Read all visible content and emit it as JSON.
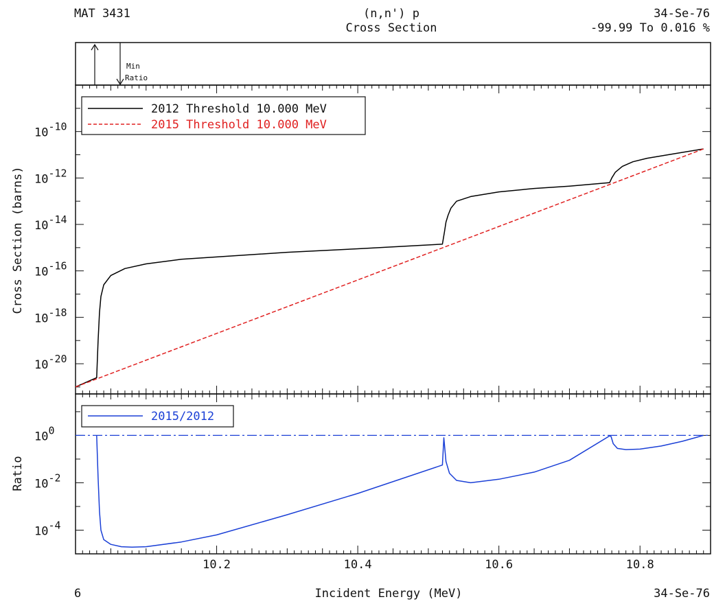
{
  "header": {
    "mat": "MAT 3431",
    "reaction": "(n,n') p",
    "quantity": "Cross Section",
    "nuclide": "34-Se-76",
    "ratio_range": "-99.99 To 0.016 %"
  },
  "footer": {
    "page": "6",
    "xlabel": "Incident Energy (MeV)",
    "nuclide": "34-Se-76"
  },
  "top_panel": {
    "min_label": "Min",
    "ratio_label": "Ratio"
  },
  "chart_data": [
    {
      "type": "line",
      "panel": "cross_section",
      "ylabel": "Cross Section (barns)",
      "xlabel": "Incident Energy (MeV)",
      "yscale": "log",
      "xlim": [
        10.0,
        10.9
      ],
      "ylim": [
        -21.3,
        -8.0
      ],
      "ytick_labels": [
        "10-20",
        "10-18",
        "10-16",
        "10-14",
        "10-12",
        "10-10"
      ],
      "legend_placement": "top-left",
      "series": [
        {
          "name": "2012 Threshold 10.000 MeV",
          "color": "#000000",
          "style": "solid",
          "x": [
            10.0,
            10.03,
            10.032,
            10.034,
            10.036,
            10.04,
            10.05,
            10.07,
            10.1,
            10.15,
            10.2,
            10.3,
            10.4,
            10.52,
            10.523,
            10.525,
            10.528,
            10.532,
            10.54,
            10.56,
            10.6,
            10.65,
            10.7,
            10.757,
            10.76,
            10.765,
            10.775,
            10.79,
            10.81,
            10.85,
            10.89
          ],
          "log10_y": [
            -21.0,
            -20.6,
            -19.0,
            -17.8,
            -17.1,
            -16.6,
            -16.2,
            -15.9,
            -15.7,
            -15.5,
            -15.4,
            -15.2,
            -15.05,
            -14.85,
            -14.3,
            -13.9,
            -13.6,
            -13.3,
            -13.0,
            -12.8,
            -12.6,
            -12.45,
            -12.35,
            -12.2,
            -12.0,
            -11.75,
            -11.5,
            -11.3,
            -11.15,
            -10.95,
            -10.75
          ]
        },
        {
          "name": "2015 Threshold 10.000 MeV",
          "color": "#e02020",
          "style": "dashed",
          "x": [
            10.0,
            10.89
          ],
          "log10_y": [
            -21.0,
            -10.75
          ]
        }
      ],
      "y_values_note": "values are log10 of cross section in barns"
    },
    {
      "type": "line",
      "panel": "ratio",
      "ylabel": "Ratio",
      "yscale": "log",
      "xlim": [
        10.0,
        10.9
      ],
      "ylim": [
        -5.0,
        1.75
      ],
      "ytick_labels": [
        "10-4",
        "10-2",
        "100"
      ],
      "xtick_labels": [
        "10.2",
        "10.4",
        "10.6",
        "10.8"
      ],
      "xticks": [
        10.2,
        10.4,
        10.6,
        10.8
      ],
      "legend_placement": "top-left",
      "reference_line": {
        "log10_y": 0,
        "style": "dash-dot",
        "color": "#1a3fd6"
      },
      "series": [
        {
          "name": "2015/2012",
          "color": "#1a3fd6",
          "style": "solid",
          "x": [
            10.03,
            10.032,
            10.034,
            10.036,
            10.04,
            10.05,
            10.065,
            10.08,
            10.1,
            10.15,
            10.2,
            10.3,
            10.4,
            10.52,
            10.522,
            10.525,
            10.53,
            10.54,
            10.56,
            10.6,
            10.65,
            10.7,
            10.757,
            10.759,
            10.762,
            10.768,
            10.78,
            10.8,
            10.83,
            10.86,
            10.89
          ],
          "log10_y": [
            0,
            -1.8,
            -3.2,
            -4.0,
            -4.4,
            -4.6,
            -4.7,
            -4.72,
            -4.7,
            -4.5,
            -4.2,
            -3.35,
            -2.45,
            -1.25,
            -0.1,
            -1.1,
            -1.6,
            -1.9,
            -2.0,
            -1.85,
            -1.55,
            -1.05,
            -0.02,
            -0.05,
            -0.35,
            -0.55,
            -0.6,
            -0.58,
            -0.45,
            -0.25,
            0
          ]
        }
      ]
    }
  ]
}
